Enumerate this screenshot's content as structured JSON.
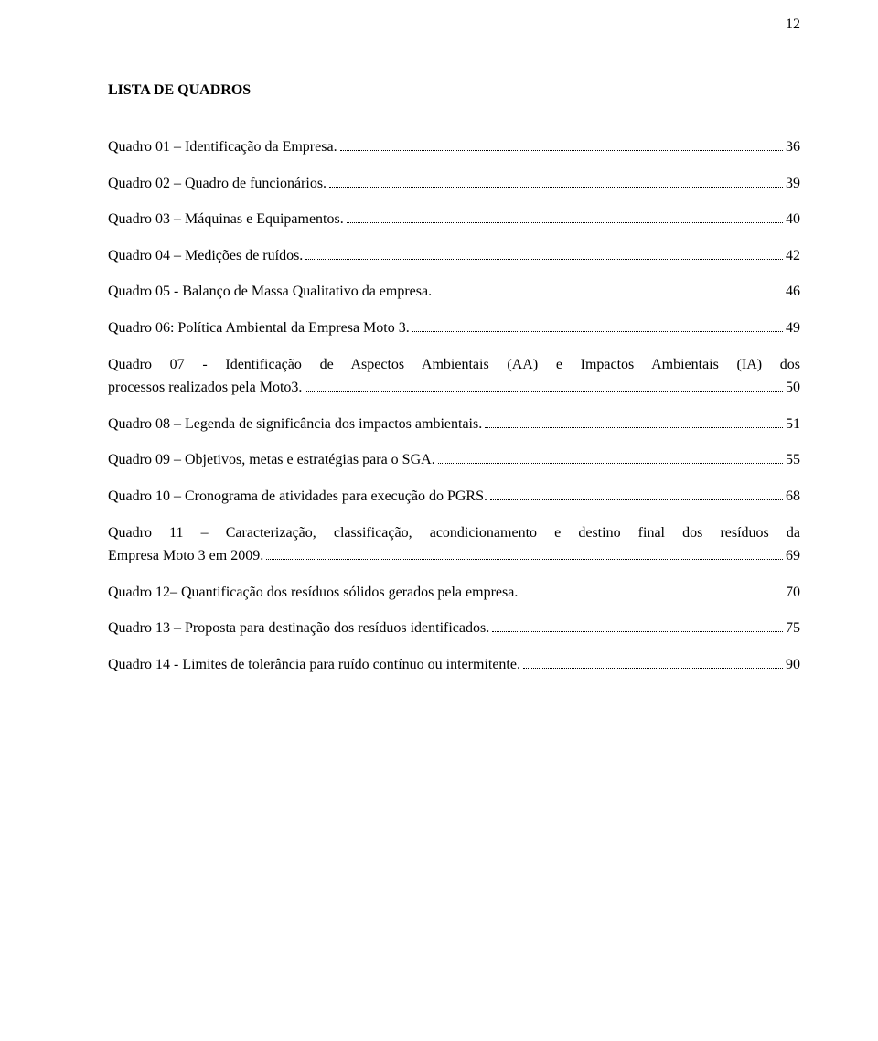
{
  "page_number": "12",
  "heading": "LISTA DE QUADROS",
  "text_color": "#000000",
  "background_color": "#ffffff",
  "font_family": "Times New Roman",
  "entries": [
    {
      "label": "Quadro 01 – Identificação da Empresa.",
      "page": "36"
    },
    {
      "label": "Quadro 02 – Quadro de funcionários.",
      "page": "39"
    },
    {
      "label": "Quadro 03 – Máquinas e Equipamentos.",
      "page": "40"
    },
    {
      "label": "Quadro 04 – Medições de ruídos.",
      "page": "42"
    },
    {
      "label": "Quadro 05 - Balanço de Massa Qualitativo da empresa.",
      "page": "46"
    },
    {
      "label": "Quadro 06: Política Ambiental da Empresa Moto 3.",
      "page": "49"
    },
    {
      "label_line1": "Quadro 07 - Identificação de Aspectos Ambientais (AA) e Impactos Ambientais (IA) dos",
      "label_line2": "processos realizados pela Moto3.",
      "page": "50"
    },
    {
      "label": "Quadro 08 – Legenda de significância dos impactos ambientais.",
      "page": "51"
    },
    {
      "label": "Quadro 09 – Objetivos, metas e estratégias para o SGA.",
      "page": "55"
    },
    {
      "label": "Quadro 10 – Cronograma de atividades para execução do PGRS.",
      "page": "68"
    },
    {
      "label_line1": "Quadro 11 – Caracterização, classificação, acondicionamento e destino final dos resíduos da",
      "label_line2": "Empresa Moto 3 em 2009.",
      "page": "69"
    },
    {
      "label": "Quadro 12– Quantificação dos resíduos sólidos gerados pela empresa.",
      "page": "70"
    },
    {
      "label": "Quadro 13 – Proposta para destinação dos resíduos identificados.",
      "page": "75"
    },
    {
      "label": "Quadro 14 - Limites de tolerância para ruído contínuo ou intermitente.",
      "page": "90"
    }
  ]
}
